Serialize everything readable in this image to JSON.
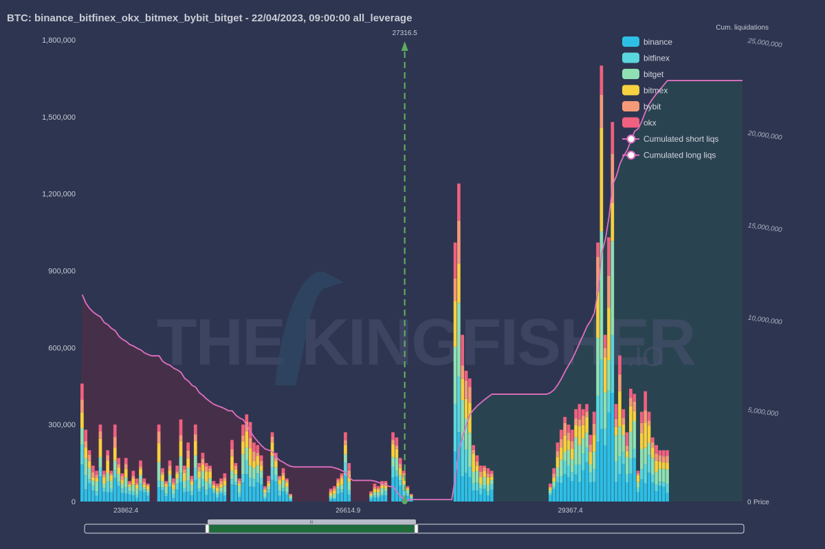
{
  "title": "BTC: binance_bitfinex_okx_bitmex_bybit_bitget - 22/04/2023, 09:00:00 all_leverage",
  "watermark": {
    "main": "THE KINGFISHER",
    "suffix": ".IO"
  },
  "chart_data": {
    "type": "bar",
    "stacked": true,
    "title": "BTC: binance_bitfinex_okx_bitmex_bybit_bitget - 22/04/2023, 09:00:00 all_leverage",
    "current_price_label": "27316.5",
    "xlabel": "Price",
    "xrange": [
      23300,
      31500
    ],
    "x_ticks": [
      "23862.4",
      "26614.9",
      "29367.4"
    ],
    "x_tick_values": [
      23862.4,
      26614.9,
      29367.4
    ],
    "current_price": 27316.5,
    "ylim_left": [
      0,
      1800000
    ],
    "y_ticks_left": [
      "0",
      "300,000",
      "600,000",
      "900,000",
      "1,200,000",
      "1,500,000",
      "1,800,000"
    ],
    "y_tick_values_left": [
      0,
      300000,
      600000,
      900000,
      1200000,
      1500000,
      1800000
    ],
    "ylabel_right": "Cum. liquidations",
    "ylim_right": [
      0,
      25000000
    ],
    "y_ticks_right": [
      "0",
      "5,000,000",
      "10,000,000",
      "15,000,000",
      "20,000,000",
      "25,000,000"
    ],
    "y_tick_values_right": [
      0,
      5000000,
      10000000,
      15000000,
      20000000,
      25000000
    ],
    "right_zero_label": "0",
    "price_label": "Price",
    "series_names": [
      "binance",
      "bitfinex",
      "bitget",
      "bitmex",
      "bybit",
      "okx"
    ],
    "series_colors": [
      "#2ebfe6",
      "#5ad6de",
      "#8fe0b3",
      "#f7d040",
      "#f59a78",
      "#f0607f"
    ],
    "legend": [
      {
        "name": "binance",
        "color": "#2ebfe6"
      },
      {
        "name": "bitfinex",
        "color": "#5ad6de"
      },
      {
        "name": "bitget",
        "color": "#8fe0b3"
      },
      {
        "name": "bitmex",
        "color": "#f7d040"
      },
      {
        "name": "bybit",
        "color": "#f59a78"
      },
      {
        "name": "okx",
        "color": "#f0607f"
      },
      {
        "name": "Cumulated short liqs",
        "color": "#e070c0"
      },
      {
        "name": "Cumulated long liqs",
        "color": "#e070c0"
      }
    ],
    "bars_total": [
      460000,
      280000,
      200000,
      140000,
      120000,
      300000,
      120000,
      200000,
      120000,
      300000,
      170000,
      110000,
      170000,
      80000,
      120000,
      90000,
      160000,
      90000,
      70000,
      0,
      0,
      300000,
      130000,
      80000,
      160000,
      90000,
      140000,
      320000,
      140000,
      230000,
      100000,
      300000,
      150000,
      190000,
      150000,
      140000,
      80000,
      70000,
      90000,
      110000,
      0,
      240000,
      150000,
      90000,
      300000,
      340000,
      310000,
      230000,
      220000,
      180000,
      60000,
      100000,
      270000,
      190000,
      100000,
      130000,
      90000,
      30000,
      0,
      0,
      0,
      0,
      0,
      0,
      0,
      0,
      0,
      0,
      50000,
      60000,
      90000,
      110000,
      270000,
      150000,
      0,
      0,
      0,
      0,
      0,
      40000,
      70000,
      60000,
      80000,
      80000,
      0,
      270000,
      250000,
      170000,
      120000,
      60000,
      30000,
      0,
      0,
      0,
      0,
      0,
      0,
      0,
      0,
      0,
      0,
      0,
      1010000,
      1240000,
      650000,
      510000,
      480000,
      220000,
      180000,
      140000,
      140000,
      130000,
      120000,
      0,
      0,
      0,
      0,
      0,
      0,
      0,
      0,
      0,
      0,
      0,
      0,
      0,
      0,
      0,
      70000,
      130000,
      230000,
      280000,
      330000,
      300000,
      280000,
      360000,
      380000,
      360000,
      380000,
      260000,
      350000,
      1010000,
      1700000,
      650000,
      1030000,
      1480000,
      380000,
      570000,
      360000,
      270000,
      440000,
      420000,
      120000,
      350000,
      430000,
      350000,
      250000,
      220000,
      200000,
      200000,
      200000,
      0,
      0,
      0,
      0,
      0,
      0,
      0,
      0,
      0,
      0,
      0,
      0,
      0,
      0,
      0,
      0,
      0,
      0,
      0,
      0
    ],
    "cumulative_short_start": 11200000,
    "cumulative_long_end": 22800000
  },
  "scrollbar": {
    "handle_label": "III"
  }
}
